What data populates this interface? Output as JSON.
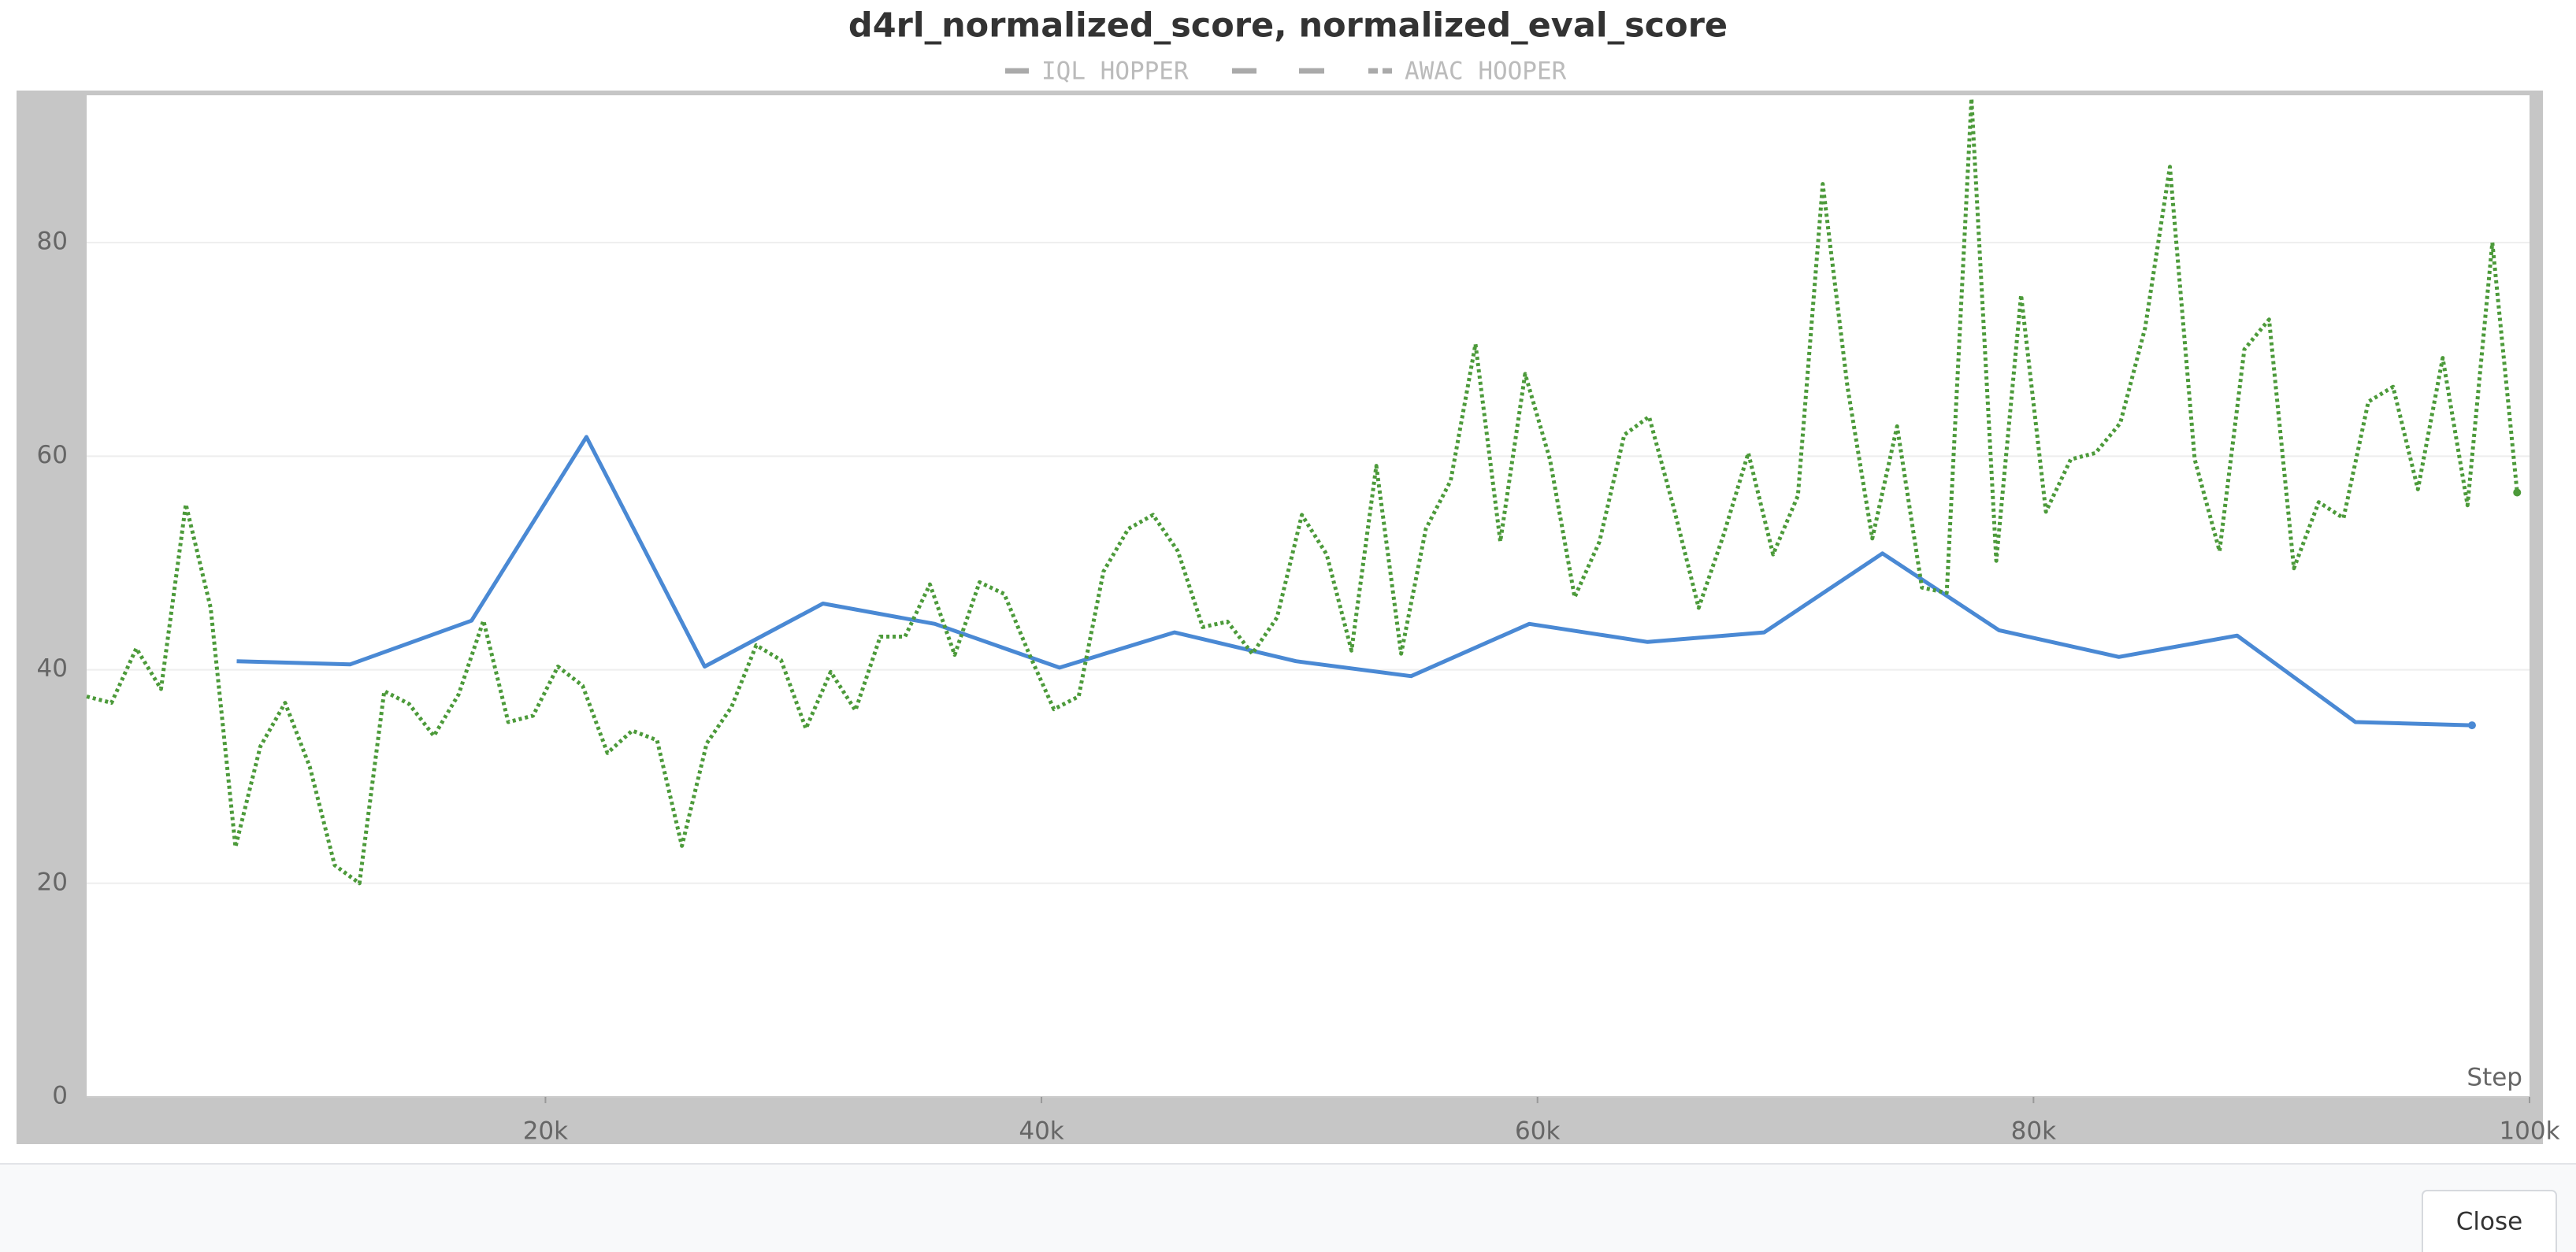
{
  "chart_data": {
    "type": "line",
    "title": "d4rl_normalized_score, normalized_eval_score",
    "x_label": "Step",
    "xlim": [
      1500,
      100000
    ],
    "xticks": [
      {
        "value": 20000,
        "label": "20k"
      },
      {
        "value": 40000,
        "label": "40k"
      },
      {
        "value": 60000,
        "label": "60k"
      },
      {
        "value": 80000,
        "label": "80k"
      },
      {
        "value": 100000,
        "label": "100k"
      }
    ],
    "ylim": [
      0,
      93.8
    ],
    "yticks": [
      0,
      20,
      40,
      60,
      80
    ],
    "grid": true,
    "series": [
      {
        "name": "IQL HOPPER",
        "color": "#4a89d4",
        "line_style": "solid",
        "x": [
          7550,
          12120,
          17020,
          21650,
          26420,
          31190,
          35700,
          40730,
          45360,
          50260,
          54900,
          59670,
          64440,
          69140,
          73910,
          78610,
          83440,
          88210,
          92980,
          97680
        ],
        "values": [
          40.8,
          40.5,
          44.6,
          61.8,
          40.3,
          46.2,
          44.3,
          40.2,
          43.5,
          40.8,
          39.4,
          44.3,
          42.6,
          43.5,
          50.9,
          43.7,
          41.2,
          43.2,
          35.1,
          34.8
        ]
      },
      {
        "name": "AWAC HOOPER",
        "color": "#4c9a3a",
        "line_style": "dotted",
        "x": [
          1500,
          2500,
          3500,
          4500,
          5500,
          6500,
          7500,
          8500,
          9500,
          10500,
          11500,
          12500,
          13500,
          14500,
          15500,
          16500,
          17500,
          18500,
          19500,
          20500,
          21500,
          22500,
          23500,
          24500,
          25500,
          26500,
          27500,
          28500,
          29500,
          30500,
          31500,
          32500,
          33500,
          34500,
          35500,
          36500,
          37500,
          38500,
          39500,
          40500,
          41500,
          42500,
          43500,
          44500,
          45500,
          46500,
          47500,
          48500,
          49500,
          50500,
          51500,
          52500,
          53500,
          54500,
          55500,
          56500,
          57500,
          58500,
          59500,
          60500,
          61500,
          62500,
          63500,
          64500,
          65500,
          66500,
          67500,
          68500,
          69500,
          70500,
          71500,
          72500,
          73500,
          74500,
          75500,
          76500,
          77500,
          78500,
          79500,
          80500,
          81500,
          82500,
          83500,
          84500,
          85500,
          86500,
          87500,
          88500,
          89500,
          90500,
          91500,
          92500,
          93500,
          94500,
          95500,
          96500,
          97500,
          98500,
          99500
        ],
        "values": [
          37.5,
          36.9,
          42,
          38.2,
          55.5,
          45.8,
          23.4,
          32.8,
          36.9,
          30.9,
          21.7,
          20,
          38,
          36.8,
          33.8,
          37.7,
          44.6,
          35.1,
          35.7,
          40.3,
          38.5,
          32.2,
          34.3,
          33.4,
          23.5,
          33.1,
          36.5,
          42.3,
          40.9,
          34.5,
          39.8,
          36.2,
          43.1,
          43.1,
          48,
          41.4,
          48.2,
          47.1,
          41.5,
          36.3,
          37.5,
          49.2,
          53.2,
          54.5,
          51.1,
          44,
          44.5,
          41.5,
          44.9,
          54.5,
          50.8,
          41.8,
          59.1,
          41.5,
          53.2,
          57.7,
          70.5,
          52,
          67.7,
          59.7,
          46.8,
          52,
          62,
          63.7,
          55.1,
          45.8,
          52.6,
          60.3,
          50.8,
          56.3,
          85.5,
          66.5,
          52.3,
          62.8,
          47.7,
          47.2,
          93.5,
          50.2,
          75.1,
          54.8,
          59.7,
          60.3,
          63.1,
          72,
          87.1,
          59.7,
          51.1,
          70,
          72.8,
          49.5,
          55.7,
          54.2,
          65.1,
          66.5,
          56.9,
          69.2,
          55.4,
          80,
          56.6
        ]
      }
    ]
  },
  "button": {
    "label": "Close"
  }
}
